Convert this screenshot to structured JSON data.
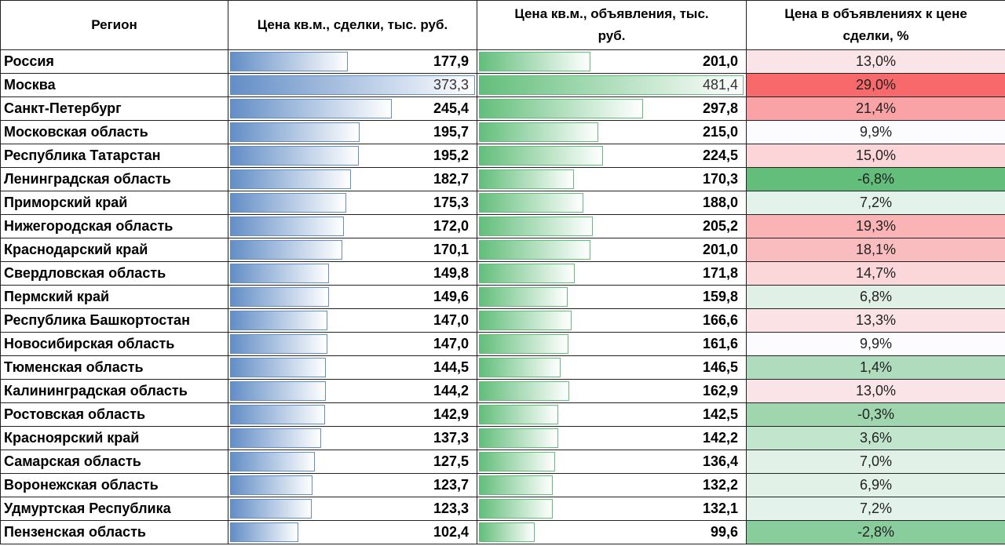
{
  "chart_data": {
    "type": "table",
    "headers": [
      "Регион",
      "Цена кв.м., сделки, тыс. руб.",
      "Цена кв.м., объявления, тыс. руб.",
      "Цена в объявлениях к цене сделки, %"
    ],
    "rows": [
      {
        "region": "Россия",
        "deal": "177,9",
        "ad": "201,0",
        "pct": "13,0%",
        "deal_v": 177.9,
        "ad_v": 201.0,
        "pct_v": 13.0
      },
      {
        "region": "Москва",
        "deal": "373,3",
        "ad": "481,4",
        "pct": "29,0%",
        "deal_v": 373.3,
        "ad_v": 481.4,
        "pct_v": 29.0
      },
      {
        "region": "Санкт-Петербург",
        "deal": "245,4",
        "ad": "297,8",
        "pct": "21,4%",
        "deal_v": 245.4,
        "ad_v": 297.8,
        "pct_v": 21.4
      },
      {
        "region": "Московская область",
        "deal": "195,7",
        "ad": "215,0",
        "pct": "9,9%",
        "deal_v": 195.7,
        "ad_v": 215.0,
        "pct_v": 9.9
      },
      {
        "region": "Республика Татарстан",
        "deal": "195,2",
        "ad": "224,5",
        "pct": "15,0%",
        "deal_v": 195.2,
        "ad_v": 224.5,
        "pct_v": 15.0
      },
      {
        "region": "Ленинградская область",
        "deal": "182,7",
        "ad": "170,3",
        "pct": "-6,8%",
        "deal_v": 182.7,
        "ad_v": 170.3,
        "pct_v": -6.8
      },
      {
        "region": "Приморский край",
        "deal": "175,3",
        "ad": "188,0",
        "pct": "7,2%",
        "deal_v": 175.3,
        "ad_v": 188.0,
        "pct_v": 7.2
      },
      {
        "region": "Нижегородская область",
        "deal": "172,0",
        "ad": "205,2",
        "pct": "19,3%",
        "deal_v": 172.0,
        "ad_v": 205.2,
        "pct_v": 19.3
      },
      {
        "region": "Краснодарский край",
        "deal": "170,1",
        "ad": "201,0",
        "pct": "18,1%",
        "deal_v": 170.1,
        "ad_v": 201.0,
        "pct_v": 18.1
      },
      {
        "region": "Свердловская область",
        "deal": "149,8",
        "ad": "171,8",
        "pct": "14,7%",
        "deal_v": 149.8,
        "ad_v": 171.8,
        "pct_v": 14.7
      },
      {
        "region": "Пермский край",
        "deal": "149,6",
        "ad": "159,8",
        "pct": "6,8%",
        "deal_v": 149.6,
        "ad_v": 159.8,
        "pct_v": 6.8
      },
      {
        "region": "Республика Башкортостан",
        "deal": "147,0",
        "ad": "166,6",
        "pct": "13,3%",
        "deal_v": 147.0,
        "ad_v": 166.6,
        "pct_v": 13.3
      },
      {
        "region": "Новосибирская область",
        "deal": "147,0",
        "ad": "161,6",
        "pct": "9,9%",
        "deal_v": 147.0,
        "ad_v": 161.6,
        "pct_v": 9.9
      },
      {
        "region": "Тюменская область",
        "deal": "144,5",
        "ad": "146,5",
        "pct": "1,4%",
        "deal_v": 144.5,
        "ad_v": 146.5,
        "pct_v": 1.4
      },
      {
        "region": "Калининградская область",
        "deal": "144,2",
        "ad": "162,9",
        "pct": "13,0%",
        "deal_v": 144.2,
        "ad_v": 162.9,
        "pct_v": 13.0
      },
      {
        "region": "Ростовская область",
        "deal": "142,9",
        "ad": "142,5",
        "pct": "-0,3%",
        "deal_v": 142.9,
        "ad_v": 142.5,
        "pct_v": -0.3
      },
      {
        "region": "Красноярский край",
        "deal": "137,3",
        "ad": "142,2",
        "pct": "3,6%",
        "deal_v": 137.3,
        "ad_v": 142.2,
        "pct_v": 3.6
      },
      {
        "region": "Самарская область",
        "deal": "127,5",
        "ad": "136,4",
        "pct": "7,0%",
        "deal_v": 127.5,
        "ad_v": 136.4,
        "pct_v": 7.0
      },
      {
        "region": "Воронежская область",
        "deal": "123,7",
        "ad": "132,2",
        "pct": "6,9%",
        "deal_v": 123.7,
        "ad_v": 132.2,
        "pct_v": 6.9
      },
      {
        "region": "Удмуртская Республика",
        "deal": "123,3",
        "ad": "132,1",
        "pct": "7,2%",
        "deal_v": 123.3,
        "ad_v": 132.1,
        "pct_v": 7.2
      },
      {
        "region": "Пензенская область",
        "deal": "102,4",
        "ad": "99,6",
        "pct": "-2,8%",
        "deal_v": 102.4,
        "ad_v": 99.6,
        "pct_v": -2.8
      }
    ],
    "colors": {
      "deal_bar": "#638EC6",
      "ad_bar": "#63BE7B",
      "scale_min": "#63BE7B",
      "scale_mid": "#FCFCFF",
      "scale_max": "#F8696B"
    },
    "scale_midpoint": 9.9
  }
}
